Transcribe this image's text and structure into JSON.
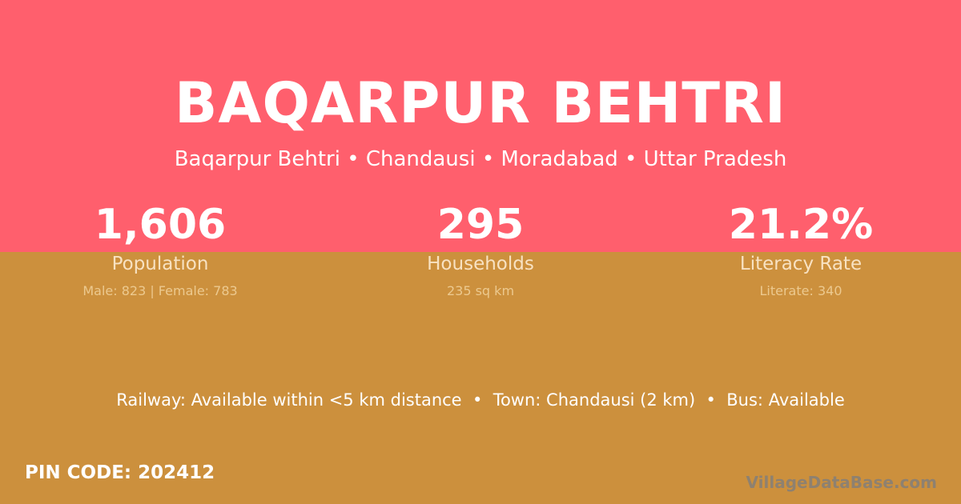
{
  "header": {
    "title": "BAQARPUR BEHTRI",
    "subtitle": "Baqarpur Behtri • Chandausi • Moradabad • Uttar Pradesh"
  },
  "stats": [
    {
      "value": "1,606",
      "label": "Population",
      "detail": "Male: 823 | Female: 783"
    },
    {
      "value": "295",
      "label": "Households",
      "detail": "235 sq km"
    },
    {
      "value": "21.2%",
      "label": "Literacy Rate",
      "detail": "Literate: 340"
    }
  ],
  "info": "Railway: Available within <5 km distance  •  Town: Chandausi (2 km)  •  Bus: Available",
  "pin": "PIN CODE: 202412",
  "brand": "VillageDataBase.com",
  "colors": {
    "top": "#ff5f6d",
    "bottom": "#cc903d"
  }
}
